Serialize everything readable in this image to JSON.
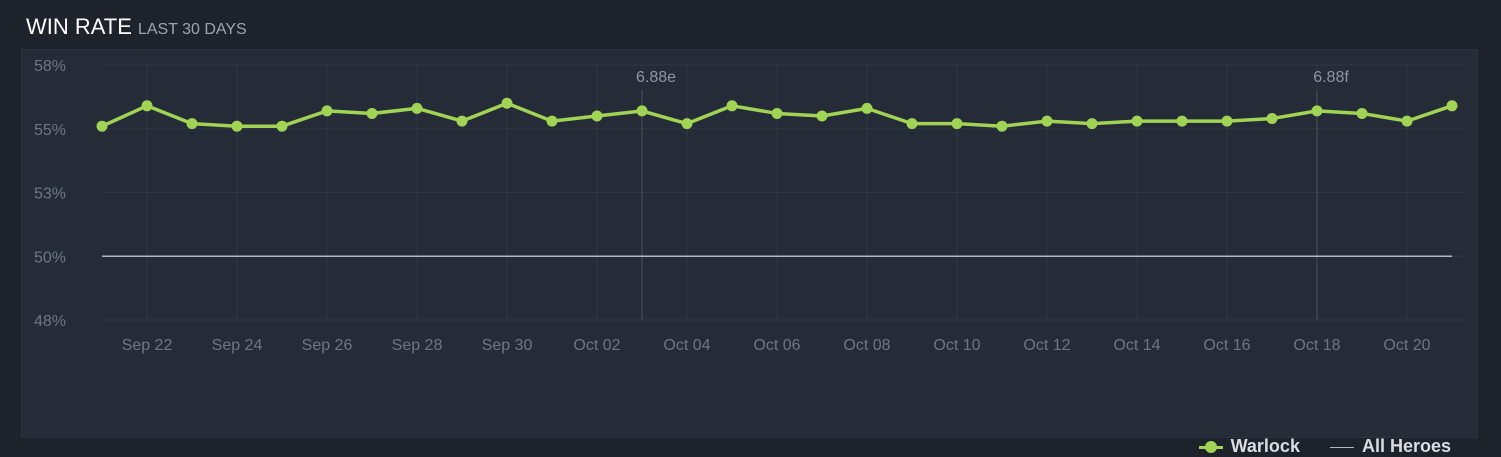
{
  "header": {
    "title": "WIN RATE",
    "subtitle": "LAST 30 DAYS"
  },
  "colors": {
    "warlock": "#a1d354",
    "all_heroes": "#b5bac1"
  },
  "chart_data": {
    "type": "line",
    "x": [
      "Sep 21",
      "Sep 22",
      "Sep 23",
      "Sep 24",
      "Sep 25",
      "Sep 26",
      "Sep 27",
      "Sep 28",
      "Sep 29",
      "Sep 30",
      "Oct 01",
      "Oct 02",
      "Oct 03",
      "Oct 04",
      "Oct 05",
      "Oct 06",
      "Oct 07",
      "Oct 08",
      "Oct 09",
      "Oct 10",
      "Oct 11",
      "Oct 12",
      "Oct 13",
      "Oct 14",
      "Oct 15",
      "Oct 16",
      "Oct 17",
      "Oct 18",
      "Oct 19",
      "Oct 20",
      "Oct 21"
    ],
    "x_tick_labels": [
      "Sep 22",
      "Sep 24",
      "Sep 26",
      "Sep 28",
      "Sep 30",
      "Oct 02",
      "Oct 04",
      "Oct 06",
      "Oct 08",
      "Oct 10",
      "Oct 12",
      "Oct 14",
      "Oct 16",
      "Oct 18",
      "Oct 20"
    ],
    "y_tick_labels": [
      "58%",
      "55%",
      "53%",
      "50%",
      "48%"
    ],
    "ylim": [
      47.5,
      57.5
    ],
    "series": [
      {
        "name": "Warlock",
        "values": [
          55.1,
          55.9,
          55.2,
          55.1,
          55.1,
          55.7,
          55.6,
          55.8,
          55.3,
          56.0,
          55.3,
          55.5,
          55.7,
          55.2,
          55.9,
          55.6,
          55.5,
          55.8,
          55.2,
          55.2,
          55.1,
          55.3,
          55.2,
          55.3,
          55.3,
          55.3,
          55.4,
          55.7,
          55.6,
          55.3,
          55.9
        ]
      },
      {
        "name": "All Heroes",
        "values": [
          50,
          50,
          50,
          50,
          50,
          50,
          50,
          50,
          50,
          50,
          50,
          50,
          50,
          50,
          50,
          50,
          50,
          50,
          50,
          50,
          50,
          50,
          50,
          50,
          50,
          50,
          50,
          50,
          50,
          50,
          50
        ]
      }
    ],
    "annotations": [
      {
        "label": "6.88e",
        "x": "Oct 03"
      },
      {
        "label": "6.88f",
        "x": "Oct 18"
      }
    ],
    "legend_position": "bottom-right",
    "grid": true
  }
}
